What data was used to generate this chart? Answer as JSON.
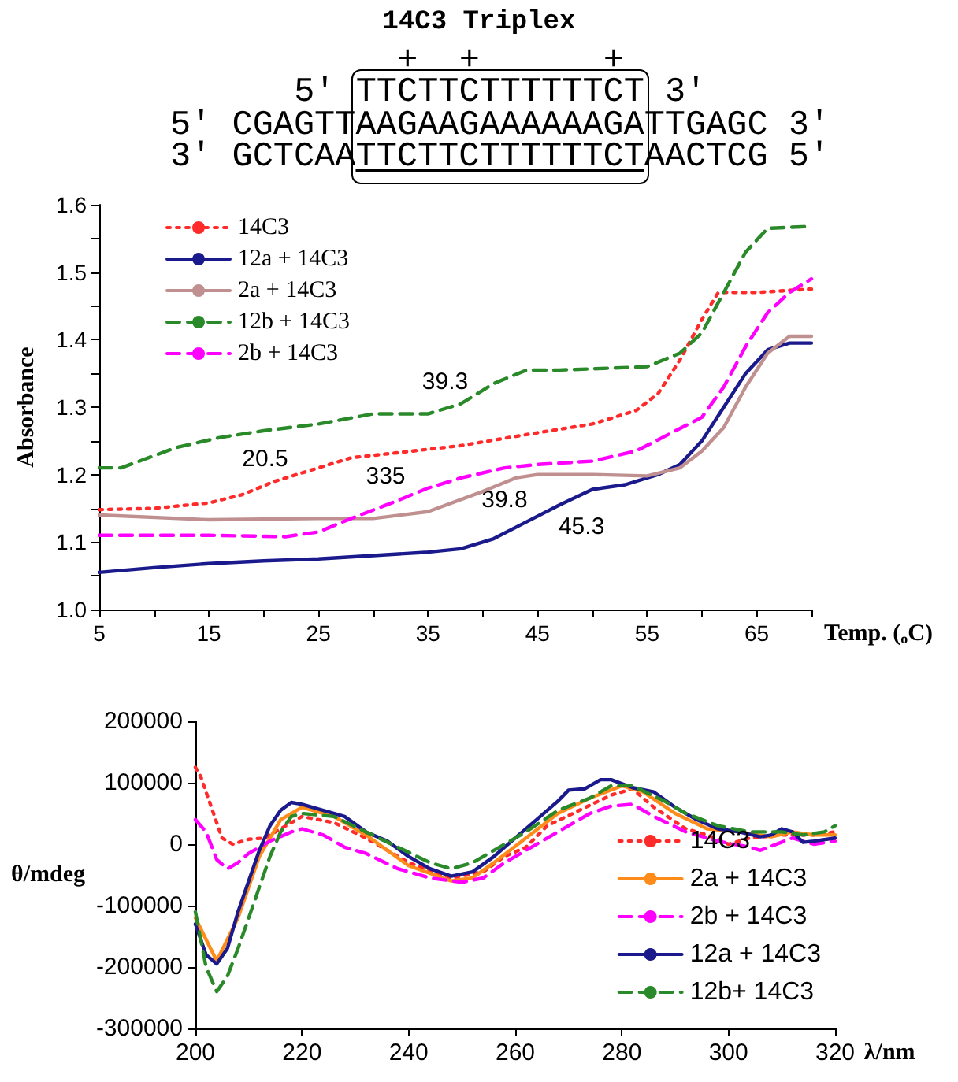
{
  "chart_data": [
    {
      "type": "line",
      "title": "14C3 Triplex",
      "annotations": [
        "+  +      +",
        "5' TTCTTCTTTTTTCT 3'",
        "5' CGAGTTAAGAAGAAAAAAGATTGAGC 3'",
        "3' GCTCAATTCTTCTTTTTTCTAACTCG 5'",
        {
          "text": "39.3",
          "x": 38,
          "y": 1.305
        },
        {
          "text": "20.5",
          "x": 21,
          "y": 1.19
        },
        {
          "text": "335",
          "x": 32,
          "y": 1.16
        },
        {
          "text": "39.8",
          "x": 44,
          "y": 1.13
        },
        {
          "text": "45.3",
          "x": 47,
          "y": 1.155
        }
      ],
      "xlabel": "Temp. ($_{o}$C)",
      "ylabel": "Absorbance",
      "xlim": [
        5,
        70
      ],
      "xticks": [
        5,
        {
          "value": 10,
          "label": null
        },
        15,
        {
          "value": 20,
          "label": null
        },
        25,
        {
          "value": 30,
          "label": null
        },
        35,
        {
          "value": 40,
          "label": null
        },
        45,
        {
          "value": 50,
          "label": null
        },
        55,
        {
          "value": 60,
          "label": null
        },
        65,
        {
          "value": 70,
          "label": null
        }
      ],
      "ylim": [
        1.0,
        1.6
      ],
      "yticks": [
        {
          "value": 1.0,
          "label": "1.0"
        },
        {
          "value": 1.05,
          "label": null
        },
        {
          "value": 1.1,
          "label": "1.1"
        },
        {
          "value": 1.15,
          "label": null
        },
        {
          "value": 1.2,
          "label": "1.2"
        },
        {
          "value": 1.25,
          "label": null
        },
        {
          "value": 1.3,
          "label": "1.3"
        },
        {
          "value": 1.35,
          "label": null
        },
        {
          "value": 1.4,
          "label": "1.4"
        },
        {
          "value": 1.45,
          "label": null
        },
        {
          "value": 1.5,
          "label": "1.5"
        },
        {
          "value": 1.55,
          "label": null
        },
        {
          "value": 1.6,
          "label": "1.6"
        }
      ],
      "grid": false,
      "legend": "top left",
      "marker": "none",
      "series": [
        {
          "name": "14C3",
          "color": "#ff2a2a",
          "line_style": "dotted",
          "x": [
            5,
            10,
            15,
            18,
            21,
            25,
            28,
            32,
            38,
            45,
            50,
            54,
            56,
            58,
            60,
            61.5,
            65,
            70
          ],
          "values": [
            1.148,
            1.15,
            1.158,
            1.17,
            1.19,
            1.21,
            1.225,
            1.232,
            1.243,
            1.262,
            1.275,
            1.295,
            1.32,
            1.37,
            1.43,
            1.47,
            1.47,
            1.475
          ]
        },
        {
          "name": "12a + 14C3",
          "color": "#1a1a8c",
          "line_style": "solid",
          "x": [
            5,
            10,
            15,
            20,
            25,
            30,
            35,
            38,
            41,
            44,
            47,
            50,
            53,
            56,
            58,
            60,
            62,
            64,
            66,
            68,
            70
          ],
          "values": [
            1.055,
            1.062,
            1.068,
            1.072,
            1.075,
            1.08,
            1.085,
            1.09,
            1.105,
            1.13,
            1.155,
            1.178,
            1.185,
            1.2,
            1.215,
            1.25,
            1.3,
            1.35,
            1.385,
            1.395,
            1.395
          ]
        },
        {
          "name": "2a + 14C3",
          "color": "#c09090",
          "line_style": "solid",
          "x": [
            5,
            15,
            25,
            30,
            35,
            40,
            43,
            45,
            50,
            55,
            58,
            60,
            62,
            64,
            66,
            68,
            70
          ],
          "values": [
            1.14,
            1.133,
            1.135,
            1.135,
            1.145,
            1.175,
            1.195,
            1.2,
            1.2,
            1.198,
            1.21,
            1.235,
            1.27,
            1.33,
            1.38,
            1.405,
            1.405
          ]
        },
        {
          "name": "12b + 14C3",
          "color": "#2a8a2a",
          "line_style": "dashed",
          "x": [
            5,
            7,
            12,
            16,
            20,
            25,
            30,
            35,
            38,
            41,
            44,
            47,
            52,
            55,
            58,
            60,
            62,
            64,
            66,
            70
          ],
          "values": [
            1.21,
            1.21,
            1.24,
            1.255,
            1.265,
            1.275,
            1.29,
            1.29,
            1.305,
            1.335,
            1.355,
            1.355,
            1.358,
            1.36,
            1.38,
            1.41,
            1.47,
            1.53,
            1.565,
            1.568
          ]
        },
        {
          "name": "2b + 14C3",
          "color": "#ff00ff",
          "line_style": "dashed",
          "x": [
            5,
            15,
            22,
            25,
            28,
            32,
            35,
            38,
            42,
            45,
            50,
            54,
            57,
            60,
            62,
            64,
            66,
            68,
            70
          ],
          "values": [
            1.11,
            1.11,
            1.108,
            1.115,
            1.135,
            1.16,
            1.18,
            1.195,
            1.21,
            1.215,
            1.22,
            1.235,
            1.26,
            1.285,
            1.33,
            1.39,
            1.44,
            1.47,
            1.49
          ]
        }
      ]
    },
    {
      "type": "line",
      "xlabel": "λ/nm",
      "ylabel": "θ/mdeg",
      "xlim": [
        200,
        320
      ],
      "xticks": [
        200,
        220,
        240,
        260,
        280,
        300,
        320
      ],
      "ylim": [
        -300000,
        200000
      ],
      "yticks": [
        -300000,
        -200000,
        -100000,
        0,
        100000,
        200000
      ],
      "grid": false,
      "legend": "bottom right",
      "marker": "none",
      "series": [
        {
          "name": "14C3",
          "color": "#ff2a2a",
          "line_style": "dotted",
          "x": [
            200,
            201,
            203,
            205,
            207,
            210,
            213,
            216,
            220,
            226,
            232,
            240,
            248,
            254,
            258,
            262,
            266,
            272,
            278,
            282,
            286,
            292,
            296,
            300,
            304,
            310,
            316,
            320
          ],
          "values": [
            125000,
            110000,
            60000,
            10000,
            0,
            8000,
            10000,
            25000,
            45000,
            35000,
            10000,
            -30000,
            -55000,
            -45000,
            -20000,
            -5000,
            30000,
            55000,
            80000,
            90000,
            60000,
            25000,
            15000,
            0,
            10000,
            15000,
            15000,
            20000
          ]
        },
        {
          "name": "2a + 14C3",
          "color": "#ff8c1a",
          "line_style": "solid",
          "x": [
            200,
            204,
            208,
            212,
            216,
            220,
            226,
            232,
            240,
            248,
            252,
            256,
            262,
            268,
            274,
            280,
            284,
            290,
            296,
            302,
            308,
            312,
            316,
            320
          ],
          "values": [
            -120000,
            -190000,
            -120000,
            -20000,
            40000,
            60000,
            45000,
            15000,
            -35000,
            -60000,
            -55000,
            -30000,
            10000,
            50000,
            75000,
            95000,
            85000,
            50000,
            25000,
            20000,
            12000,
            20000,
            15000,
            15000
          ]
        },
        {
          "name": "2b + 14C3",
          "color": "#ff00ff",
          "line_style": "dashed",
          "x": [
            200,
            202,
            204,
            206,
            208,
            210,
            214,
            218,
            220,
            224,
            228,
            232,
            238,
            244,
            250,
            254,
            258,
            262,
            268,
            274,
            278,
            282,
            286,
            292,
            298,
            304,
            306,
            312,
            316,
            320
          ],
          "values": [
            40000,
            20000,
            -25000,
            -40000,
            -30000,
            -15000,
            5000,
            20000,
            25000,
            15000,
            -5000,
            -15000,
            -40000,
            -55000,
            -62000,
            -55000,
            -30000,
            -10000,
            20000,
            50000,
            62000,
            65000,
            45000,
            20000,
            5000,
            -5000,
            -10000,
            10000,
            0,
            5000
          ]
        },
        {
          "name": "12a + 14C3",
          "color": "#1a1a8c",
          "line_style": "solid",
          "x": [
            200,
            202,
            204,
            206,
            208,
            210,
            212,
            214,
            216,
            218,
            220,
            224,
            228,
            232,
            236,
            240,
            244,
            248,
            252,
            256,
            260,
            264,
            268,
            270,
            273,
            276,
            278,
            282,
            286,
            290,
            294,
            298,
            302,
            306,
            308,
            310,
            312,
            314,
            316,
            320
          ],
          "values": [
            -130000,
            -180000,
            -195000,
            -170000,
            -110000,
            -60000,
            -10000,
            30000,
            55000,
            68000,
            65000,
            55000,
            45000,
            20000,
            5000,
            -20000,
            -40000,
            -52000,
            -45000,
            -20000,
            10000,
            40000,
            70000,
            88000,
            90000,
            105000,
            105000,
            92000,
            85000,
            60000,
            40000,
            25000,
            20000,
            12000,
            15000,
            25000,
            20000,
            3000,
            5000,
            10000
          ]
        },
        {
          "name": "12b+ 14C3",
          "color": "#2a8a2a",
          "line_style": "dashed",
          "x": [
            200,
            202,
            204,
            206,
            208,
            210,
            212,
            214,
            216,
            218,
            220,
            226,
            232,
            238,
            244,
            248,
            252,
            256,
            262,
            268,
            274,
            278,
            282,
            288,
            292,
            298,
            304,
            310,
            314,
            318,
            320
          ],
          "values": [
            -110000,
            -200000,
            -240000,
            -215000,
            -170000,
            -120000,
            -70000,
            -20000,
            20000,
            45000,
            50000,
            45000,
            20000,
            -5000,
            -30000,
            -40000,
            -30000,
            -10000,
            20000,
            55000,
            75000,
            95000,
            95000,
            70000,
            50000,
            30000,
            20000,
            20000,
            15000,
            20000,
            30000
          ]
        }
      ]
    }
  ]
}
